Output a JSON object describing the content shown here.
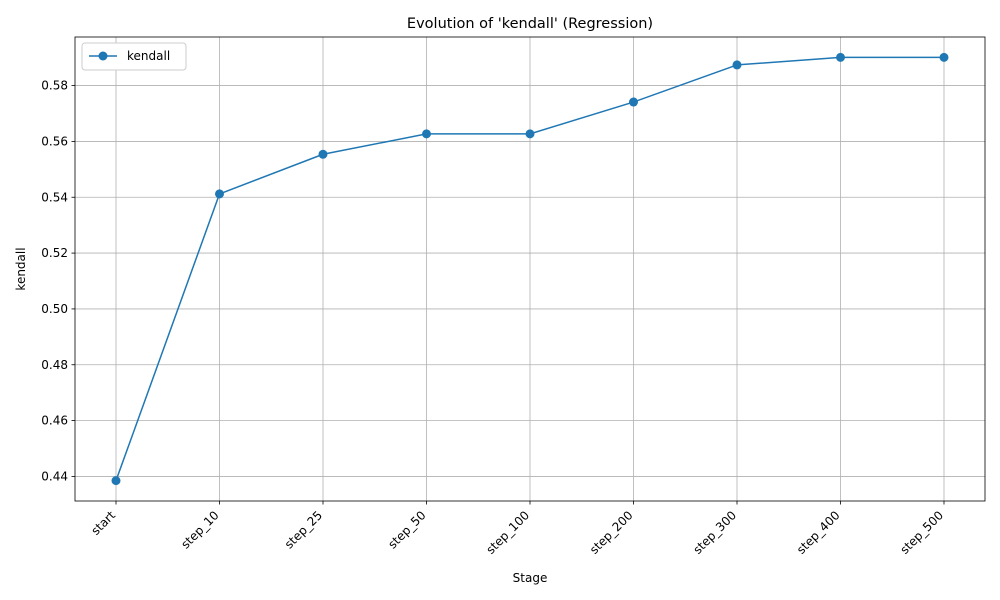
{
  "chart_data": {
    "type": "line",
    "title": "Evolution of 'kendall' (Regression)",
    "xlabel": "Stage",
    "ylabel": "kendall",
    "categories": [
      "start",
      "step_10",
      "step_25",
      "step_50",
      "step_100",
      "step_200",
      "step_300",
      "step_400",
      "step_500"
    ],
    "series": [
      {
        "name": "kendall",
        "values": [
          0.4385,
          0.5412,
          0.5554,
          0.5627,
          0.5627,
          0.5741,
          0.5874,
          0.5901,
          0.5901
        ],
        "color": "#1f77b4",
        "marker": "circle"
      }
    ],
    "ylim": [
      0.4312,
      0.5974
    ],
    "yticks": [
      0.44,
      0.46,
      0.48,
      0.5,
      0.52,
      0.54,
      0.56,
      0.58
    ],
    "ytick_labels": [
      "0.44",
      "0.46",
      "0.48",
      "0.50",
      "0.52",
      "0.54",
      "0.56",
      "0.58"
    ],
    "grid": true,
    "legend_position": "top-left",
    "xtick_rotation": 45
  }
}
